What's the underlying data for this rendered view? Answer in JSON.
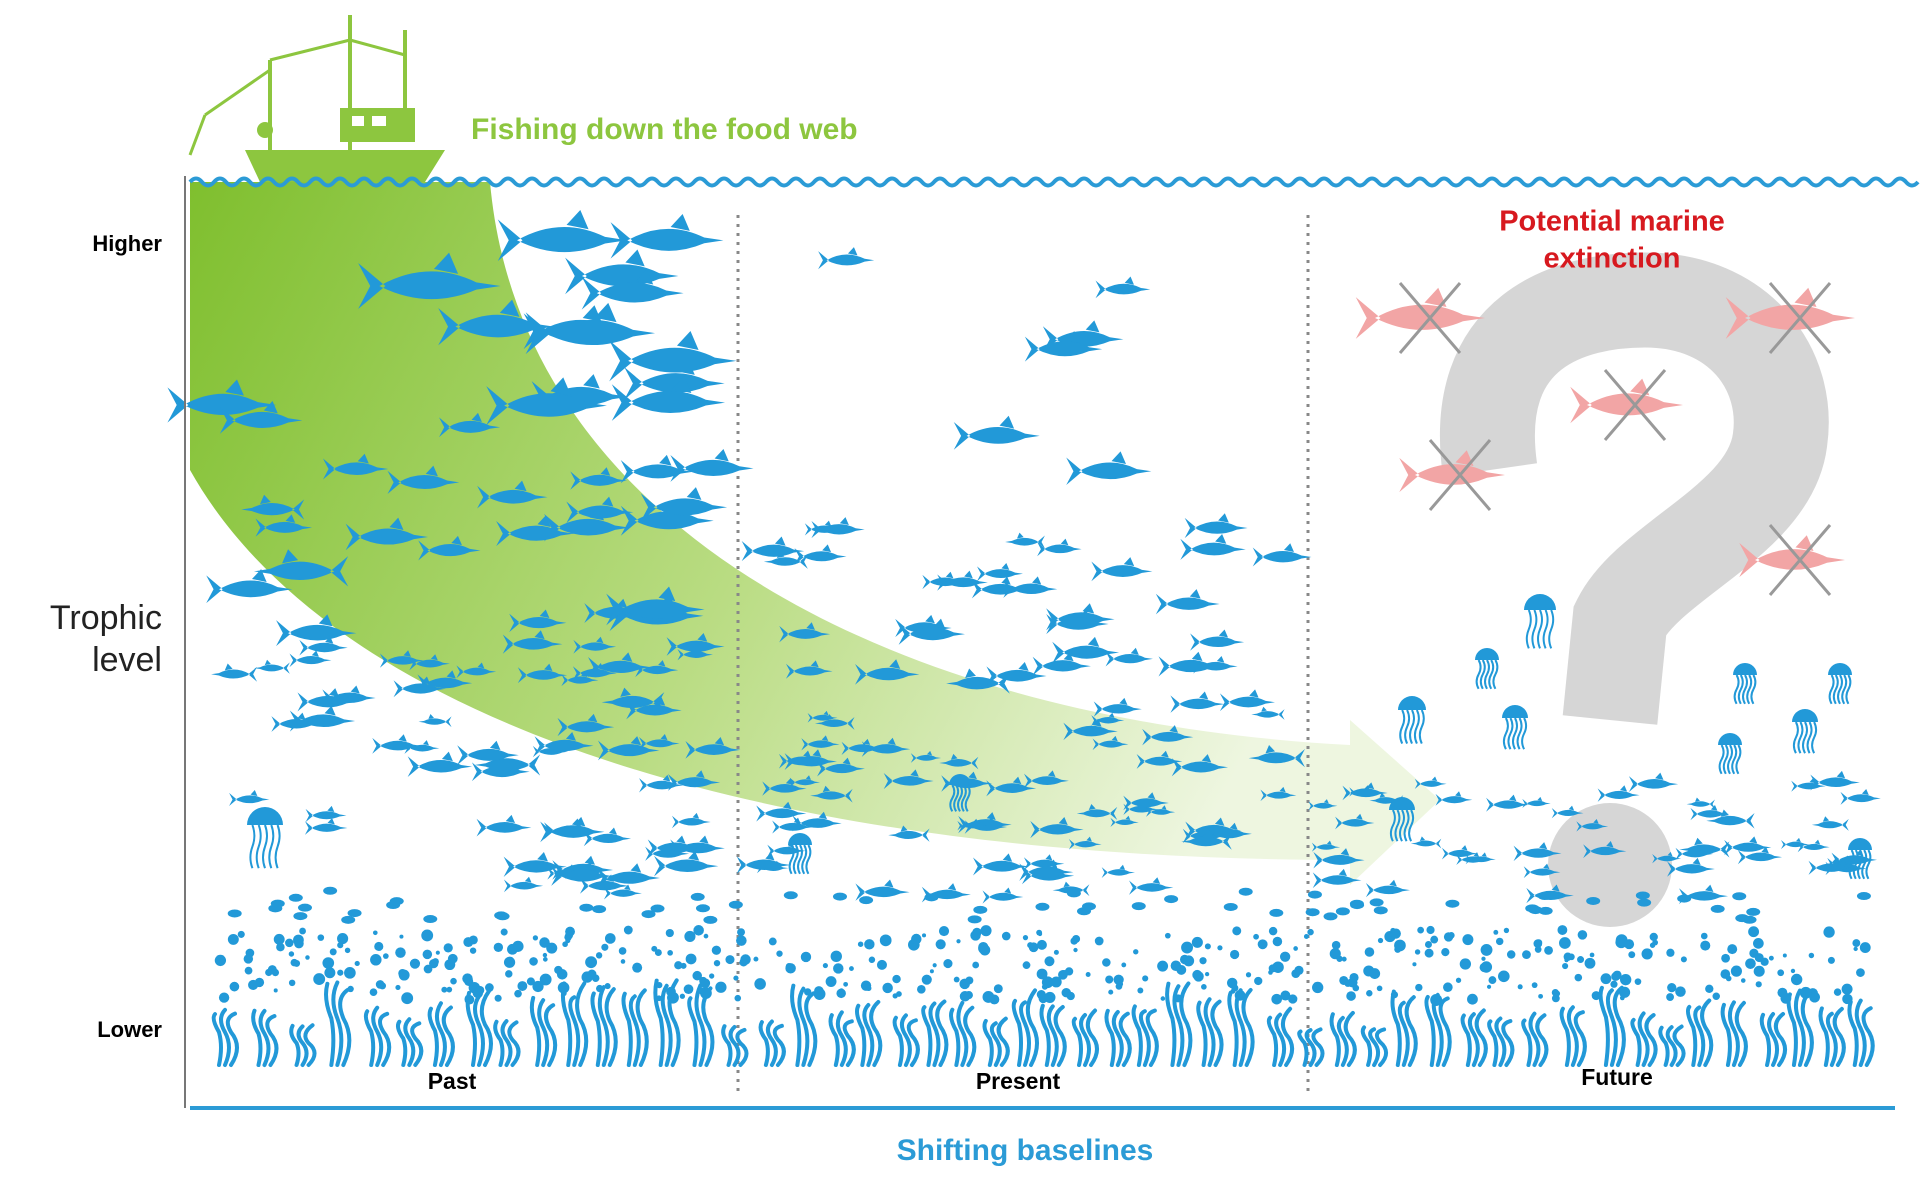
{
  "header": {
    "title": "Fishing down the food web"
  },
  "annotation": {
    "lines": [
      "Potential marine",
      "extinction"
    ]
  },
  "axis": {
    "higher": "Higher",
    "label_lines": [
      "Trophic",
      "level"
    ],
    "lower": "Lower"
  },
  "periods": [
    "Past",
    "Present",
    "Future"
  ],
  "footer": {
    "label": "Shifting baselines"
  }
}
